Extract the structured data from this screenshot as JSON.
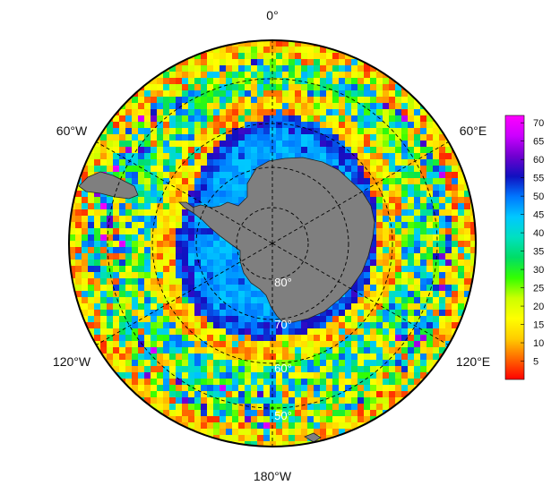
{
  "map": {
    "projection": "south-polar-stereographic",
    "longitude_labels": {
      "top": "0°",
      "upper_left": "60°W",
      "upper_right": "60°E",
      "lower_left": "120°W",
      "lower_right": "120°E",
      "bottom": "180°W"
    },
    "latitude_labels": [
      "80°",
      "70°",
      "60°",
      "50°"
    ],
    "colors": {
      "land": "#7f7f7f",
      "frame": "#000000",
      "graticule": "#000000"
    }
  },
  "colorbar": {
    "ticks": [
      "70",
      "65",
      "60",
      "55",
      "50",
      "45",
      "40",
      "35",
      "30",
      "25",
      "20",
      "15",
      "10",
      "5"
    ],
    "range": [
      0,
      72
    ],
    "colors": [
      "#ff0000",
      "#ff6600",
      "#ffcc00",
      "#ffff00",
      "#ccff00",
      "#33ff00",
      "#00dd66",
      "#00e0c0",
      "#00c8ff",
      "#0077ff",
      "#1010c0",
      "#7000d0",
      "#cc00ff",
      "#ff00ff"
    ]
  }
}
